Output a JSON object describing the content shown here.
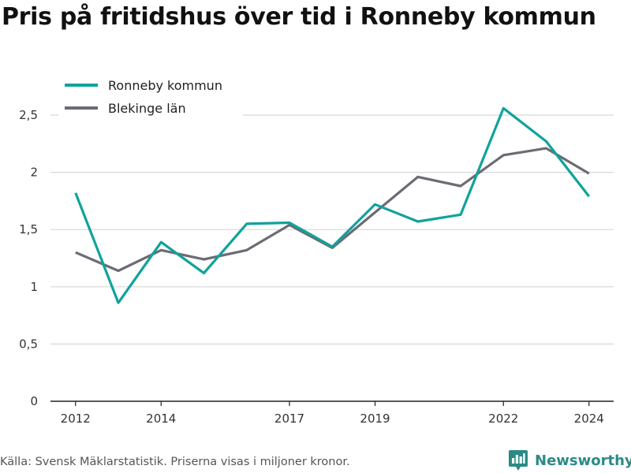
{
  "title": "Pris på fritidshus över tid i Ronneby kommun",
  "footer": {
    "note": "Källa: Svensk Mäklarstatistik. Priserna visas i miljoner kronor.",
    "brand": "Newsworthy"
  },
  "colors": {
    "ronneby": "#0fa39b",
    "blekinge": "#6d6b73",
    "grid": "#d7d7d7",
    "axis": "#222222",
    "brand": "#2a8a86"
  },
  "chart_data": {
    "type": "line",
    "title": "Pris på fritidshus över tid i Ronneby kommun",
    "xlabel": "",
    "ylabel": "",
    "x": [
      2012,
      2013,
      2014,
      2015,
      2016,
      2017,
      2018,
      2019,
      2020,
      2021,
      2022,
      2023,
      2024
    ],
    "x_ticks": [
      2012,
      2014,
      2017,
      2019,
      2022,
      2024
    ],
    "x_tick_labels": [
      "2012",
      "2014",
      "2017",
      "2019",
      "2022",
      "2024"
    ],
    "xlim": [
      2011.6,
      2024.6
    ],
    "y_ticks": [
      0,
      0.5,
      1,
      1.5,
      2,
      2.5
    ],
    "y_tick_labels": [
      "0",
      "0,5",
      "1",
      "1,5",
      "2",
      "2,5"
    ],
    "ylim": [
      0,
      2.8
    ],
    "grid": true,
    "legend_position": "top-left",
    "series": [
      {
        "name": "Ronneby kommun",
        "color": "#0fa39b",
        "values": [
          1.82,
          0.86,
          1.39,
          1.12,
          1.55,
          1.56,
          1.35,
          1.72,
          1.57,
          1.63,
          2.56,
          2.27,
          1.79
        ]
      },
      {
        "name": "Blekinge län",
        "color": "#6d6b73",
        "values": [
          1.3,
          1.14,
          1.32,
          1.24,
          1.32,
          1.54,
          1.34,
          1.65,
          1.96,
          1.88,
          2.15,
          2.21,
          1.99
        ]
      }
    ]
  }
}
